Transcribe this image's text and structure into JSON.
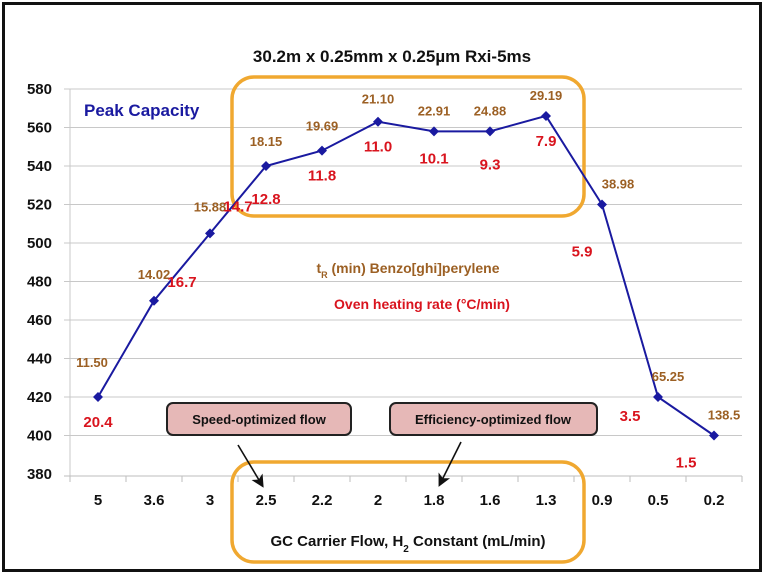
{
  "chart_data": {
    "type": "line",
    "title": "30.2m x 0.25mm x 0.25µm Rxi-5ms",
    "xlabel": "GC Carrier Flow, H2 Constant (mL/min)",
    "xlabel_main": "GC Carrier Flow, H",
    "xlabel_sub": "2",
    "xlabel_tail": " Constant (mL/min)",
    "ylabel": "",
    "ylim": [
      380,
      580
    ],
    "yticks": [
      "580",
      "560",
      "540",
      "520",
      "500",
      "480",
      "460",
      "440",
      "420",
      "400",
      "380"
    ],
    "grid": true,
    "categories": [
      "5",
      "3.6",
      "3",
      "2.5",
      "2.2",
      "2",
      "1.8",
      "1.6",
      "1.3",
      "0.9",
      "0.5",
      "0.2"
    ],
    "series": [
      {
        "name": "Peak Capacity",
        "color": "#1A1AA0",
        "values": [
          420,
          470,
          505,
          540,
          548,
          563,
          558,
          558,
          566,
          520,
          420,
          400
        ]
      }
    ],
    "annotations": {
      "retention_time_label": "tR (min) Benzo[ghi]perylene",
      "retention_time_label_t": "t",
      "retention_time_label_sub": "R",
      "retention_time_label_rest": " (min) Benzo[ghi]perylene",
      "oven_rate_label": "Oven heating rate (°C/min)",
      "retention_times": [
        "11.50",
        "14.02",
        "15.88",
        "18.15",
        "19.69",
        "21.10",
        "22.91",
        "24.88",
        "29.19",
        "38.98",
        "65.25",
        "138.5"
      ],
      "oven_rates": [
        "20.4",
        "16.7",
        "14.7",
        "12.8",
        "11.8",
        "11.0",
        "10.1",
        "9.3",
        "7.9",
        "5.9",
        "3.5",
        "1.5"
      ],
      "callouts": [
        {
          "text": "Speed-optimized flow",
          "points_to": "2.5"
        },
        {
          "text": "Efficiency-optimized flow",
          "points_to": "1.8"
        }
      ]
    },
    "colors": {
      "series": "#1A1AA0",
      "retention_time": "#9C6024",
      "oven_rate": "#D9141E",
      "highlight_box": "#F0A830",
      "callout_fill": "#E6B8B7",
      "grid": "#C8C8C8"
    }
  }
}
